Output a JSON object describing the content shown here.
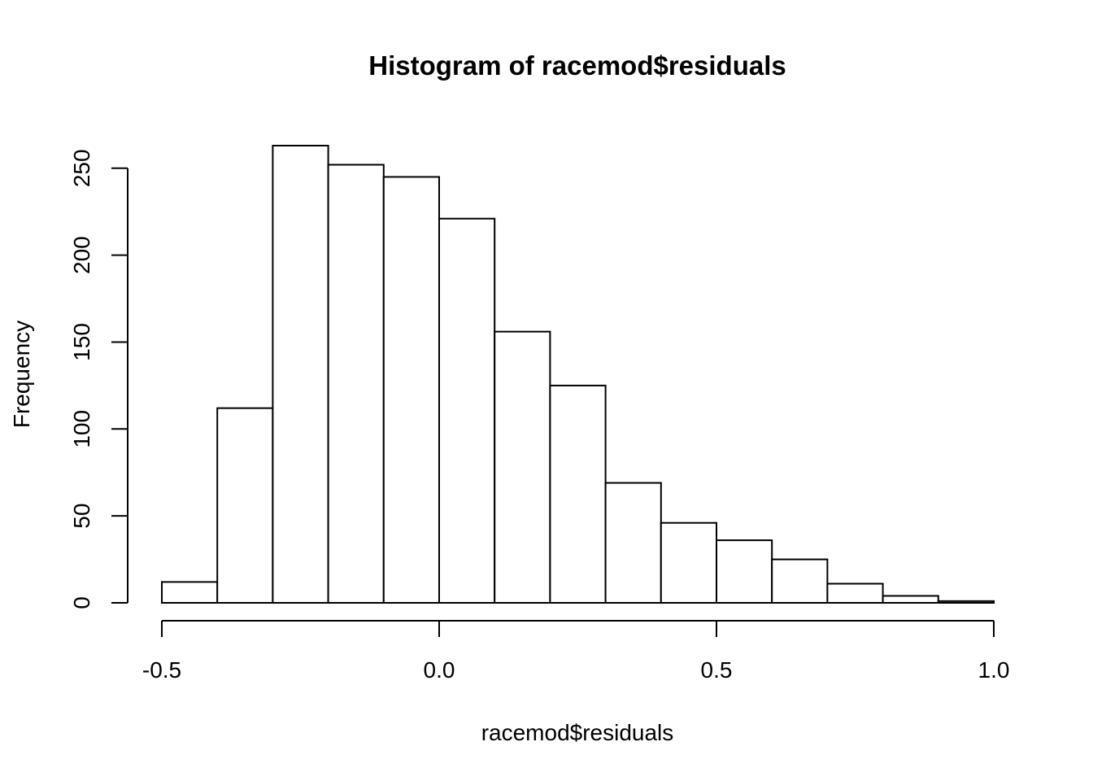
{
  "chart_data": {
    "type": "histogram",
    "title": "Histogram of racemod$residuals",
    "xlabel": "racemod$residuals",
    "ylabel": "Frequency",
    "bins": [
      {
        "x0": -0.5,
        "x1": -0.4,
        "count": 12
      },
      {
        "x0": -0.4,
        "x1": -0.3,
        "count": 112
      },
      {
        "x0": -0.3,
        "x1": -0.2,
        "count": 263
      },
      {
        "x0": -0.2,
        "x1": -0.1,
        "count": 252
      },
      {
        "x0": -0.1,
        "x1": 0.0,
        "count": 245
      },
      {
        "x0": 0.0,
        "x1": 0.1,
        "count": 221
      },
      {
        "x0": 0.1,
        "x1": 0.2,
        "count": 156
      },
      {
        "x0": 0.2,
        "x1": 0.3,
        "count": 125
      },
      {
        "x0": 0.3,
        "x1": 0.4,
        "count": 69
      },
      {
        "x0": 0.4,
        "x1": 0.5,
        "count": 46
      },
      {
        "x0": 0.5,
        "x1": 0.6,
        "count": 36
      },
      {
        "x0": 0.6,
        "x1": 0.7,
        "count": 25
      },
      {
        "x0": 0.7,
        "x1": 0.8,
        "count": 11
      },
      {
        "x0": 0.8,
        "x1": 0.9,
        "count": 4
      },
      {
        "x0": 0.9,
        "x1": 1.0,
        "count": 1
      }
    ],
    "x_ticks": [
      -0.5,
      0.0,
      0.5,
      1.0
    ],
    "x_tick_labels": [
      "-0.5",
      "0.0",
      "0.5",
      "1.0"
    ],
    "y_ticks": [
      0,
      50,
      100,
      150,
      200,
      250
    ],
    "y_tick_labels": [
      "0",
      "50",
      "100",
      "150",
      "200",
      "250"
    ],
    "xlim": [
      -0.5,
      1.0
    ],
    "ylim": [
      0,
      263
    ],
    "bar_fill": "#ffffff",
    "bar_stroke": "#000000",
    "grid": false
  }
}
